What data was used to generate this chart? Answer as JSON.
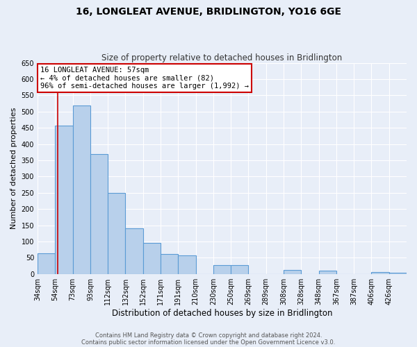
{
  "title": "16, LONGLEAT AVENUE, BRIDLINGTON, YO16 6GE",
  "subtitle": "Size of property relative to detached houses in Bridlington",
  "xlabel": "Distribution of detached houses by size in Bridlington",
  "ylabel": "Number of detached properties",
  "bin_labels": [
    "34sqm",
    "54sqm",
    "73sqm",
    "93sqm",
    "112sqm",
    "132sqm",
    "152sqm",
    "171sqm",
    "191sqm",
    "210sqm",
    "230sqm",
    "250sqm",
    "269sqm",
    "289sqm",
    "308sqm",
    "328sqm",
    "348sqm",
    "367sqm",
    "387sqm",
    "406sqm",
    "426sqm"
  ],
  "bin_values": [
    63,
    457,
    519,
    370,
    249,
    140,
    95,
    62,
    58,
    0,
    28,
    28,
    0,
    0,
    12,
    0,
    10,
    0,
    0,
    5,
    3
  ],
  "bar_color": "#b8d0eb",
  "bar_edge_color": "#5b9bd5",
  "background_color": "#e8eef8",
  "grid_color": "#ffffff",
  "vline_color": "#cc0000",
  "annotation_text": "16 LONGLEAT AVENUE: 57sqm\n← 4% of detached houses are smaller (82)\n96% of semi-detached houses are larger (1,992) →",
  "annotation_box_color": "#ffffff",
  "annotation_box_edge": "#cc0000",
  "ylim": [
    0,
    650
  ],
  "yticks": [
    0,
    50,
    100,
    150,
    200,
    250,
    300,
    350,
    400,
    450,
    500,
    550,
    600,
    650
  ],
  "footer_line1": "Contains HM Land Registry data © Crown copyright and database right 2024.",
  "footer_line2": "Contains public sector information licensed under the Open Government Licence v3.0.",
  "bin_starts": [
    34,
    54,
    73,
    93,
    112,
    132,
    152,
    171,
    191,
    210,
    230,
    250,
    269,
    289,
    308,
    328,
    348,
    367,
    387,
    406,
    426
  ],
  "prop_size": 57,
  "title_fontsize": 10,
  "subtitle_fontsize": 8.5,
  "ylabel_fontsize": 8,
  "xlabel_fontsize": 8.5,
  "tick_fontsize": 7,
  "annotation_fontsize": 7.5,
  "footer_fontsize": 6
}
